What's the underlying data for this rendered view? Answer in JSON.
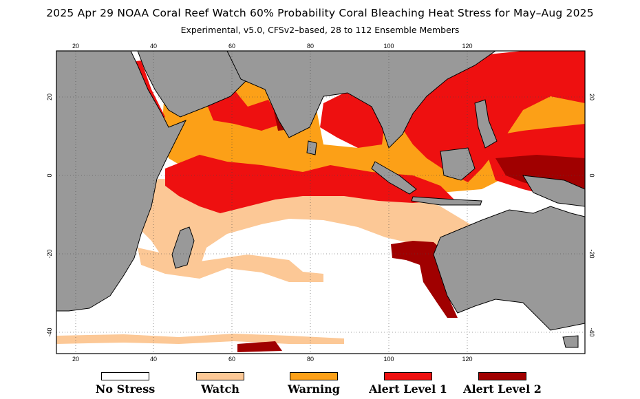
{
  "title": "2025 Apr 29 NOAA Coral Reef Watch 60% Probability Coral Bleaching Heat Stress for May–Aug 2025",
  "subtitle": "Experimental, v5.0, CFSv2–based, 28 to 112 Ensemble Members",
  "map": {
    "lon_range": [
      15,
      150
    ],
    "lat_range": [
      -45,
      32
    ],
    "lon_ticks": [
      "20",
      "40",
      "60",
      "80",
      "100",
      "120"
    ],
    "lat_ticks": [
      "20",
      "0",
      "-20",
      "-40"
    ],
    "colors": {
      "land": "#999999",
      "no_stress": "#ffffff",
      "watch": "#fcc896",
      "warning": "#fca017",
      "alert_level_1": "#ee1010",
      "alert_level_2": "#a00000"
    }
  },
  "legend": [
    {
      "label": "No Stress",
      "color": "#ffffff"
    },
    {
      "label": "Watch",
      "color": "#fcc896"
    },
    {
      "label": "Warning",
      "color": "#fca017"
    },
    {
      "label": "Alert Level 1",
      "color": "#ee1010"
    },
    {
      "label": "Alert Level 2",
      "color": "#a00000"
    }
  ]
}
